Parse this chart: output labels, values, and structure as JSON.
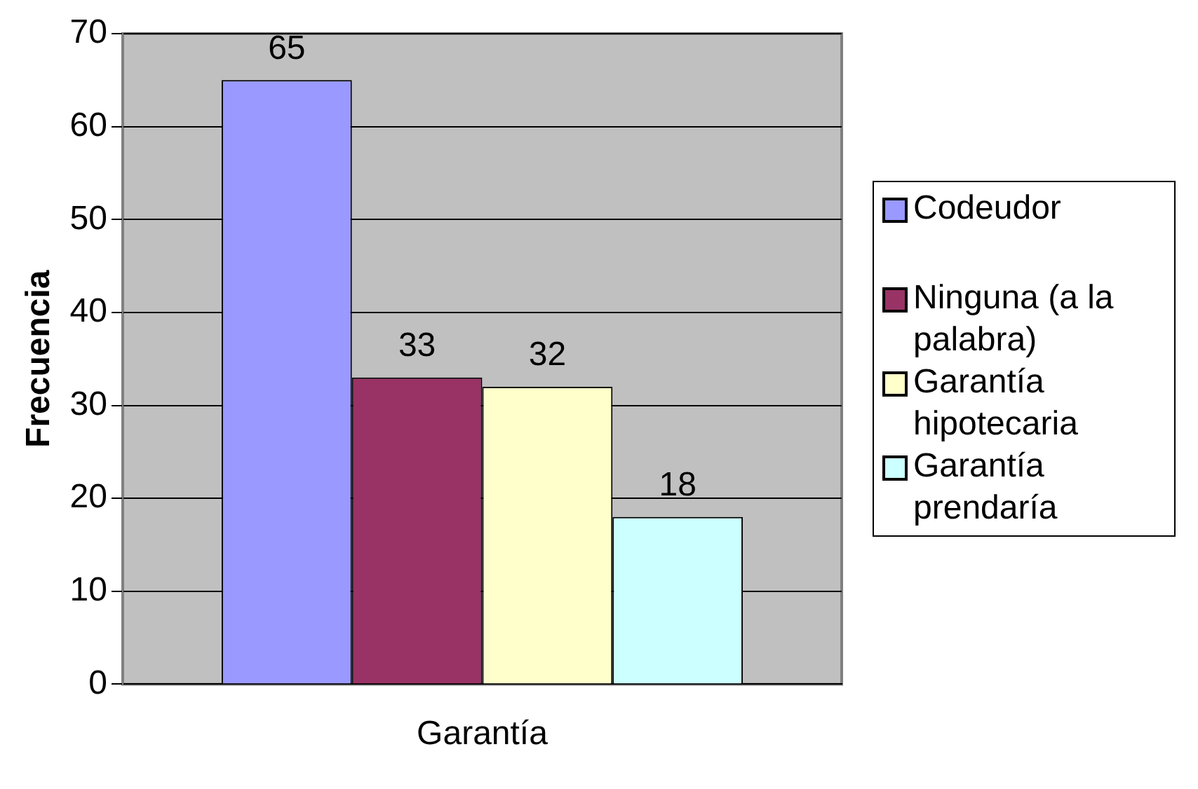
{
  "chart_data": {
    "type": "bar",
    "ylabel": "Frecuencia",
    "categories": [
      "Garantía"
    ],
    "series": [
      {
        "name": "Codeudor",
        "color": "#9999ff",
        "values": [
          65
        ]
      },
      {
        "name": "Ninguna (a la palabra)",
        "color": "#993366",
        "values": [
          33
        ]
      },
      {
        "name": "Garantía hipotecaria",
        "color": "#ffffcc",
        "values": [
          32
        ]
      },
      {
        "name": "Garantía prendaría",
        "color": "#ccffff",
        "values": [
          18
        ]
      }
    ],
    "ylim": [
      0,
      70
    ],
    "yticks": [
      0,
      10,
      20,
      30,
      40,
      50,
      60,
      70
    ],
    "grid": "y",
    "legend": "right",
    "data_labels": true
  }
}
